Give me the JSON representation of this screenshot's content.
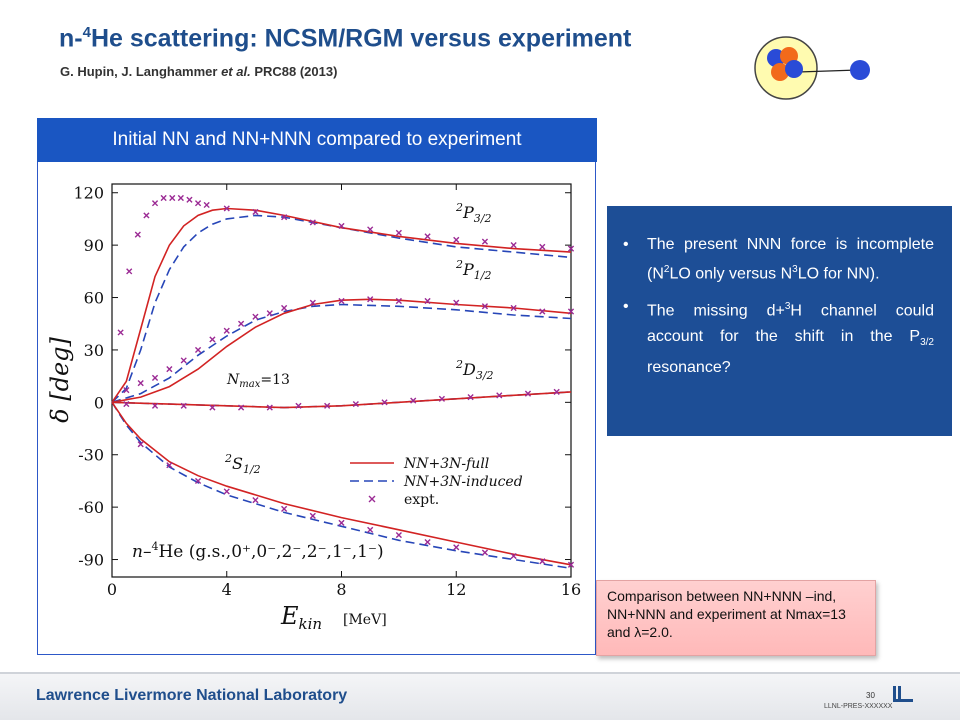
{
  "header": {
    "title_pre": "n-",
    "title_sup": "4",
    "title_post": "He scattering: NCSM/RGM versus experiment",
    "authors": "G. Hupin, J. Langhammer ",
    "etal": "et al.",
    "journal": " PRC88 (2013)"
  },
  "banner": {
    "text": "Initial NN and NN+NNN compared to experiment"
  },
  "info": {
    "b1": {
      "t1": "The present NNN force is incomplete (N",
      "s1": "2",
      "t2": "LO only versus N",
      "s2": "3",
      "t3": "LO for NN)."
    },
    "b2": {
      "t1": "The missing d+",
      "s1": "3",
      "t2": "H channel could account for the shift in the P",
      "sub": "3/2",
      "t3": " resonance?"
    }
  },
  "note": {
    "text": "Comparison between NN+NNN –ind, NN+NNN and experiment at Nmax=13 and λ=2.0."
  },
  "footer": {
    "lab": "Lawrence Livermore National Laboratory",
    "page": "30",
    "code": "LLNL-PRES-XXXXXX"
  },
  "colors": {
    "title": "#1f4e8c",
    "banner": "#1a56c2",
    "info_bg": "#1d4e96",
    "full": "#d22323",
    "induced": "#2746b8",
    "expt": "#9b2a94"
  },
  "chart_data": {
    "type": "line",
    "title": "",
    "xlabel": "E_kin [MeV]",
    "ylabel": "δ [deg]",
    "xlim": [
      0,
      16
    ],
    "ylim": [
      -100,
      125
    ],
    "xticks": [
      0,
      4,
      8,
      12,
      16
    ],
    "yticks": [
      -90,
      -60,
      -30,
      0,
      30,
      60,
      90,
      120
    ],
    "grid": false,
    "legend_position": "lower-right",
    "legend": [
      "NN+3N-full",
      "NN+3N-induced",
      "expt."
    ],
    "annotations": [
      "N_max=13",
      "n-4He (g.s.,0+,0-,2-,2-,1-,1-)"
    ],
    "series": [
      {
        "name": "2P3/2",
        "full": [
          [
            0,
            0
          ],
          [
            0.5,
            12
          ],
          [
            1,
            42
          ],
          [
            1.5,
            72
          ],
          [
            2,
            90
          ],
          [
            2.5,
            101
          ],
          [
            3,
            107
          ],
          [
            3.5,
            110
          ],
          [
            4,
            111
          ],
          [
            5,
            110
          ],
          [
            6,
            107
          ],
          [
            8,
            100
          ],
          [
            10,
            95
          ],
          [
            12,
            91
          ],
          [
            14,
            88
          ],
          [
            16,
            86
          ]
        ],
        "induced": [
          [
            0,
            0
          ],
          [
            0.5,
            8
          ],
          [
            1,
            30
          ],
          [
            1.5,
            57
          ],
          [
            2,
            76
          ],
          [
            2.5,
            89
          ],
          [
            3,
            97
          ],
          [
            3.5,
            102
          ],
          [
            4,
            105
          ],
          [
            5,
            107
          ],
          [
            6,
            106
          ],
          [
            8,
            100
          ],
          [
            10,
            94
          ],
          [
            12,
            89
          ],
          [
            14,
            86
          ],
          [
            16,
            83
          ]
        ],
        "expt": [
          [
            0.3,
            40
          ],
          [
            0.6,
            75
          ],
          [
            0.9,
            96
          ],
          [
            1.2,
            107
          ],
          [
            1.5,
            114
          ],
          [
            1.8,
            117
          ],
          [
            2.1,
            117
          ],
          [
            2.4,
            117
          ],
          [
            2.7,
            116
          ],
          [
            3.0,
            114
          ],
          [
            3.3,
            113
          ],
          [
            4,
            111
          ],
          [
            5,
            109
          ],
          [
            6,
            106
          ],
          [
            7,
            103
          ],
          [
            8,
            101
          ],
          [
            9,
            99
          ],
          [
            10,
            97
          ],
          [
            11,
            95
          ],
          [
            12,
            93
          ],
          [
            13,
            92
          ],
          [
            14,
            90
          ],
          [
            15,
            89
          ],
          [
            16,
            88
          ]
        ]
      },
      {
        "name": "2P1/2",
        "full": [
          [
            0,
            0
          ],
          [
            1,
            3
          ],
          [
            2,
            9
          ],
          [
            3,
            19
          ],
          [
            4,
            32
          ],
          [
            5,
            43
          ],
          [
            6,
            51
          ],
          [
            7,
            56
          ],
          [
            8,
            58.5
          ],
          [
            9,
            59
          ],
          [
            10,
            58.5
          ],
          [
            12,
            56
          ],
          [
            14,
            54
          ],
          [
            16,
            51
          ]
        ],
        "induced": [
          [
            0,
            0
          ],
          [
            1,
            5
          ],
          [
            2,
            14
          ],
          [
            3,
            27
          ],
          [
            4,
            38
          ],
          [
            5,
            47
          ],
          [
            6,
            52
          ],
          [
            7,
            55
          ],
          [
            8,
            56
          ],
          [
            10,
            55
          ],
          [
            12,
            53
          ],
          [
            14,
            50
          ],
          [
            16,
            48
          ]
        ],
        "expt": [
          [
            0.5,
            7
          ],
          [
            1,
            11
          ],
          [
            1.5,
            14
          ],
          [
            2,
            19
          ],
          [
            2.5,
            24
          ],
          [
            3,
            30
          ],
          [
            3.5,
            36
          ],
          [
            4,
            41
          ],
          [
            4.5,
            45
          ],
          [
            5,
            49
          ],
          [
            5.5,
            51
          ],
          [
            6,
            54
          ],
          [
            7,
            57
          ],
          [
            8,
            58
          ],
          [
            9,
            59
          ],
          [
            10,
            58
          ],
          [
            11,
            58
          ],
          [
            12,
            57
          ],
          [
            13,
            55
          ],
          [
            14,
            54
          ],
          [
            15,
            52
          ],
          [
            16,
            52
          ]
        ]
      },
      {
        "name": "2D3/2",
        "full": [
          [
            0,
            0
          ],
          [
            2,
            -1
          ],
          [
            4,
            -2
          ],
          [
            6,
            -3
          ],
          [
            8,
            -2
          ],
          [
            10,
            0
          ],
          [
            12,
            2
          ],
          [
            14,
            4
          ],
          [
            16,
            6
          ]
        ],
        "induced": [
          [
            0,
            0
          ],
          [
            2,
            -1
          ],
          [
            4,
            -2
          ],
          [
            6,
            -3
          ],
          [
            8,
            -2
          ],
          [
            10,
            0
          ],
          [
            12,
            2
          ],
          [
            14,
            4
          ],
          [
            16,
            6
          ]
        ],
        "expt": [
          [
            0.5,
            -1
          ],
          [
            1.5,
            -2
          ],
          [
            2.5,
            -2
          ],
          [
            3.5,
            -3
          ],
          [
            4.5,
            -3
          ],
          [
            5.5,
            -3
          ],
          [
            6.5,
            -2
          ],
          [
            7.5,
            -2
          ],
          [
            8.5,
            -1
          ],
          [
            9.5,
            0
          ],
          [
            10.5,
            1
          ],
          [
            11.5,
            2
          ],
          [
            12.5,
            3
          ],
          [
            13.5,
            4
          ],
          [
            14.5,
            5
          ],
          [
            15.5,
            6
          ]
        ]
      },
      {
        "name": "2S1/2",
        "full": [
          [
            0,
            0
          ],
          [
            0.5,
            -12
          ],
          [
            1,
            -21
          ],
          [
            2,
            -34
          ],
          [
            3,
            -42
          ],
          [
            4,
            -48
          ],
          [
            6,
            -58
          ],
          [
            8,
            -66
          ],
          [
            10,
            -73
          ],
          [
            12,
            -80
          ],
          [
            14,
            -87
          ],
          [
            16,
            -93
          ]
        ],
        "induced": [
          [
            0,
            0
          ],
          [
            0.5,
            -13
          ],
          [
            1,
            -23
          ],
          [
            2,
            -37
          ],
          [
            3,
            -46
          ],
          [
            4,
            -53
          ],
          [
            6,
            -63
          ],
          [
            8,
            -71
          ],
          [
            10,
            -79
          ],
          [
            12,
            -85
          ],
          [
            14,
            -90
          ],
          [
            16,
            -95
          ]
        ],
        "expt": [
          [
            1,
            -24
          ],
          [
            2,
            -36
          ],
          [
            3,
            -45
          ],
          [
            4,
            -51
          ],
          [
            5,
            -56
          ],
          [
            6,
            -61
          ],
          [
            7,
            -65
          ],
          [
            8,
            -69
          ],
          [
            9,
            -73
          ],
          [
            10,
            -76
          ],
          [
            11,
            -80
          ],
          [
            12,
            -83
          ],
          [
            13,
            -86
          ],
          [
            14,
            -88
          ],
          [
            15,
            -91
          ],
          [
            16,
            -93
          ]
        ]
      }
    ]
  }
}
